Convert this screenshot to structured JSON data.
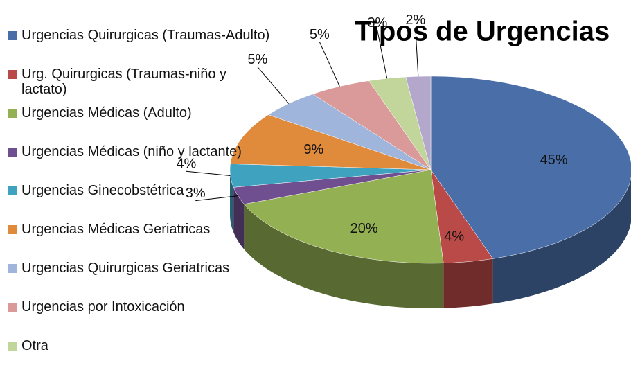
{
  "chart_data": {
    "type": "pie",
    "title": "Tipos de Urgencias",
    "categories": [
      "Urgencias Quirurgicas (Traumas-Adulto)",
      "Urg. Quirurgicas (Traumas-niño y lactato)",
      "Urgencias Médicas (Adulto)",
      "Urgencias Médicas (niño y lactante)",
      "Urgencias Ginecobstétrica",
      "Urgencias Médicas Geriatricas",
      "Urgencias Quirurgicas Geriatricas",
      "Urgencias por Intoxicación",
      "Otra",
      null
    ],
    "values": [
      45,
      4,
      20,
      3,
      4,
      9,
      5,
      5,
      3,
      2
    ],
    "value_labels": [
      "45%",
      "4%",
      "20%",
      "3%",
      "4%",
      "9%",
      "5%",
      "5%",
      "3%",
      "2%"
    ],
    "colors": [
      "#4a6fa8",
      "#b94a48",
      "#93b053",
      "#6f4f8f",
      "#3fa3bf",
      "#e08a3c",
      "#9fb5db",
      "#d99a99",
      "#c2d69b",
      "#b3a7cc"
    ],
    "legend": "left"
  }
}
